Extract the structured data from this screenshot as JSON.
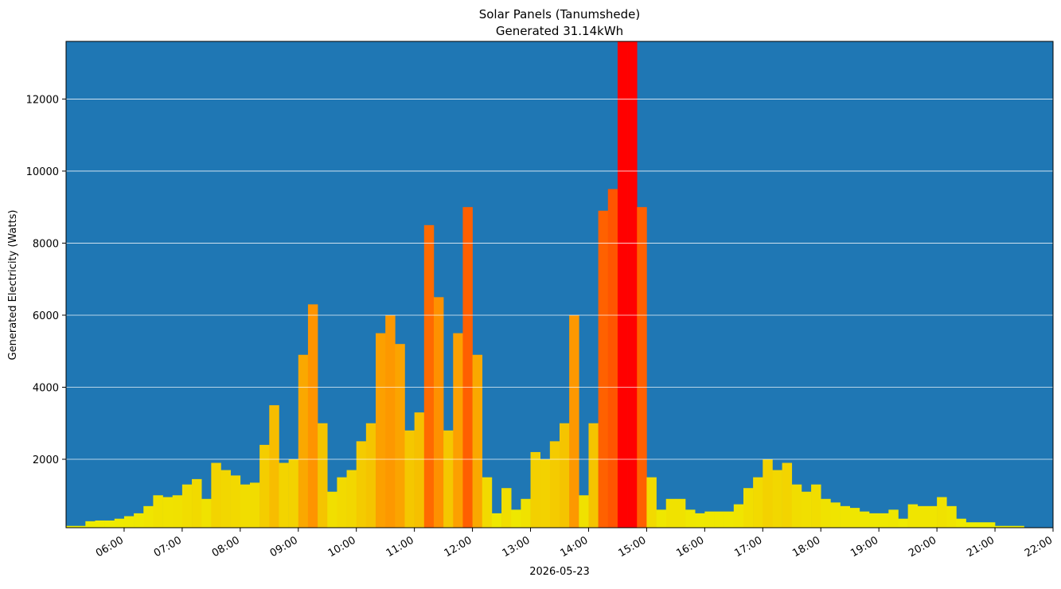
{
  "chart_data": {
    "type": "bar",
    "title": "Solar Panels (Tanumshede)",
    "subtitle": "Generated 31.14kWh",
    "x_label": "2026-05-23",
    "y_label": "Generated Electricity (Watts)",
    "x": [
      "05:00",
      "05:10",
      "05:20",
      "05:30",
      "05:40",
      "05:50",
      "06:00",
      "06:10",
      "06:20",
      "06:30",
      "06:40",
      "06:50",
      "07:00",
      "07:10",
      "07:20",
      "07:30",
      "07:40",
      "07:50",
      "08:00",
      "08:10",
      "08:20",
      "08:30",
      "08:40",
      "08:50",
      "09:00",
      "09:10",
      "09:20",
      "09:30",
      "09:40",
      "09:50",
      "10:00",
      "10:10",
      "10:20",
      "10:30",
      "10:40",
      "10:50",
      "11:00",
      "11:10",
      "11:20",
      "11:30",
      "11:40",
      "11:50",
      "12:00",
      "12:10",
      "12:20",
      "12:30",
      "12:40",
      "12:50",
      "13:00",
      "13:10",
      "13:20",
      "13:30",
      "13:40",
      "13:50",
      "14:00",
      "14:10",
      "14:20",
      "14:30",
      "14:40",
      "14:50",
      "15:00",
      "15:10",
      "15:20",
      "15:30",
      "15:40",
      "15:50",
      "16:00",
      "16:10",
      "16:20",
      "16:30",
      "16:40",
      "16:50",
      "17:00",
      "17:10",
      "17:20",
      "17:30",
      "17:40",
      "17:50",
      "18:00",
      "18:10",
      "18:20",
      "18:30",
      "18:40",
      "18:50",
      "19:00",
      "19:10",
      "19:20",
      "19:30",
      "19:40",
      "19:50",
      "20:00",
      "20:10",
      "20:20",
      "20:30",
      "20:40",
      "20:50",
      "21:00",
      "21:10",
      "21:20"
    ],
    "values": [
      150,
      150,
      280,
      300,
      300,
      350,
      420,
      500,
      700,
      1000,
      950,
      1000,
      1300,
      1450,
      900,
      1900,
      1700,
      1550,
      1300,
      1350,
      2400,
      3500,
      1900,
      2000,
      4900,
      6300,
      3000,
      1100,
      1500,
      1700,
      2500,
      3000,
      5500,
      6000,
      5200,
      2800,
      3300,
      8500,
      6500,
      2800,
      5500,
      9000,
      4900,
      1500,
      500,
      1200,
      600,
      900,
      2200,
      2000,
      2500,
      3000,
      6000,
      1000,
      3000,
      8900,
      9500,
      13600,
      13600,
      9000,
      1500,
      600,
      900,
      900,
      600,
      500,
      550,
      550,
      550,
      750,
      1200,
      1500,
      2000,
      1700,
      1900,
      1300,
      1100,
      1300,
      900,
      800,
      700,
      650,
      550,
      500,
      500,
      600,
      350,
      750,
      700,
      700,
      950,
      700,
      350,
      250,
      250,
      250,
      150,
      150,
      150
    ],
    "colormap": [
      "#eeee00",
      "#ff8c00",
      "#ff0000"
    ],
    "background": "#1f77b4",
    "grid": true,
    "grid_color": "#ffffff",
    "xlim": [
      "05:00",
      "22:00"
    ],
    "xticks": [
      "06:00",
      "07:00",
      "08:00",
      "09:00",
      "10:00",
      "11:00",
      "12:00",
      "13:00",
      "14:00",
      "15:00",
      "16:00",
      "17:00",
      "18:00",
      "19:00",
      "20:00",
      "21:00",
      "22:00"
    ],
    "ylim": [
      100,
      13600
    ],
    "yticks": [
      2000,
      4000,
      6000,
      8000,
      10000,
      12000
    ]
  }
}
